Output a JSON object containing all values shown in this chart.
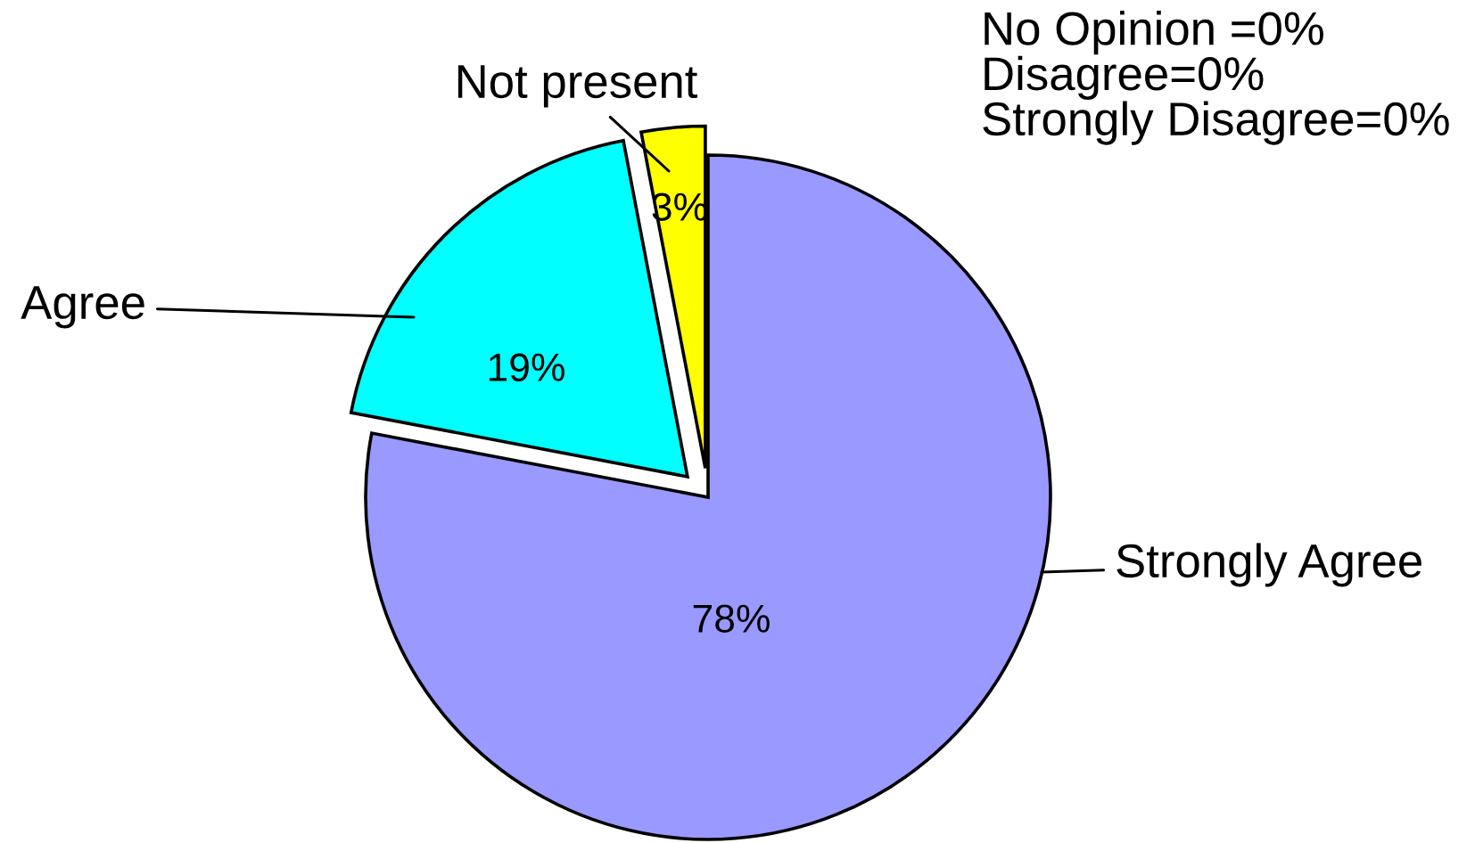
{
  "chart_data": {
    "type": "pie",
    "categories": [
      "Strongly Agree",
      "Agree",
      "Not present"
    ],
    "values": [
      78,
      19,
      3
    ],
    "colors": [
      "#9999ff",
      "#00ffff",
      "#ffff00"
    ],
    "value_labels": [
      "78%",
      "19%",
      "3%"
    ],
    "annotations": [
      "No Opinion =0%\nDisagree=0%\nStrongly Disagree=0%"
    ]
  }
}
